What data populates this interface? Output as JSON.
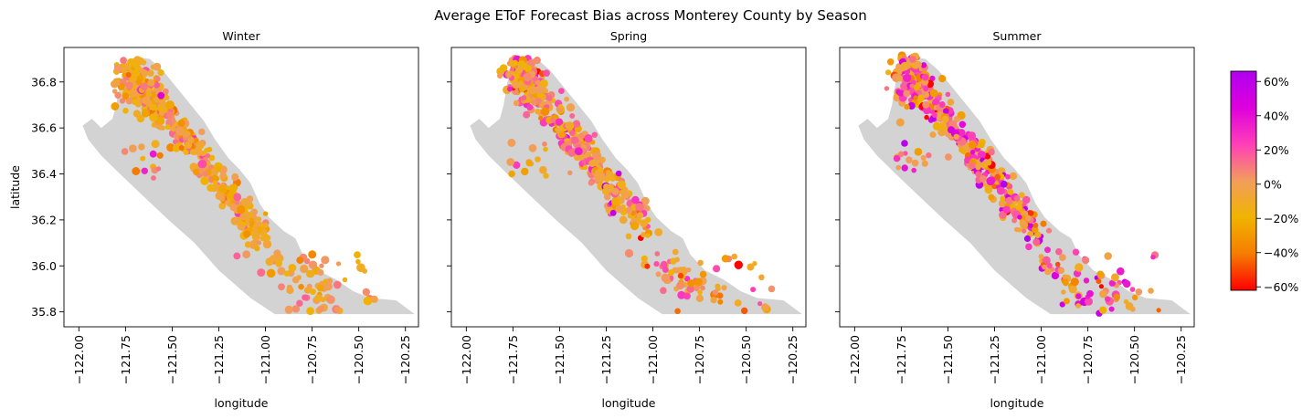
{
  "figure": {
    "suptitle": "Average EToF Forecast Bias across Monterey County by Season"
  },
  "chart_data": {
    "type": "scatter",
    "title": "Average EToF Forecast Bias across Monterey County by Season",
    "xlabel": "longitude",
    "ylabel": "latitude",
    "xlim": [
      -122.08,
      -120.18
    ],
    "ylim": [
      35.735,
      36.95
    ],
    "xticks": [
      -122.0,
      -121.75,
      -121.5,
      -121.25,
      -121.0,
      -120.75,
      -120.5,
      -120.25
    ],
    "xtick_labels": [
      "−122.00",
      "−121.75",
      "−121.50",
      "−121.25",
      "−121.00",
      "−120.75",
      "−120.50",
      "−120.25"
    ],
    "yticks": [
      35.8,
      36.0,
      36.2,
      36.4,
      36.6,
      36.8
    ],
    "ytick_labels": [
      "35.8",
      "36.0",
      "36.2",
      "36.4",
      "36.6",
      "36.8"
    ],
    "grid": false,
    "county_shape": [
      [
        -121.98,
        36.61
      ],
      [
        -121.93,
        36.64
      ],
      [
        -121.88,
        36.6
      ],
      [
        -121.82,
        36.64
      ],
      [
        -121.8,
        36.7
      ],
      [
        -121.78,
        36.8
      ],
      [
        -121.75,
        36.87
      ],
      [
        -121.7,
        36.91
      ],
      [
        -121.62,
        36.9
      ],
      [
        -121.55,
        36.85
      ],
      [
        -121.46,
        36.76
      ],
      [
        -121.4,
        36.7
      ],
      [
        -121.33,
        36.63
      ],
      [
        -121.27,
        36.55
      ],
      [
        -121.2,
        36.47
      ],
      [
        -121.14,
        36.42
      ],
      [
        -121.08,
        36.36
      ],
      [
        -121.03,
        36.27
      ],
      [
        -120.98,
        36.21
      ],
      [
        -120.9,
        36.15
      ],
      [
        -120.84,
        36.12
      ],
      [
        -120.8,
        36.05
      ],
      [
        -120.72,
        35.98
      ],
      [
        -120.62,
        35.94
      ],
      [
        -120.53,
        35.89
      ],
      [
        -120.44,
        35.86
      ],
      [
        -120.3,
        35.85
      ],
      [
        -120.2,
        35.79
      ],
      [
        -120.95,
        35.79
      ],
      [
        -121.08,
        35.86
      ],
      [
        -121.25,
        35.98
      ],
      [
        -121.38,
        36.1
      ],
      [
        -121.52,
        36.2
      ],
      [
        -121.65,
        36.3
      ],
      [
        -121.78,
        36.4
      ],
      [
        -121.88,
        36.48
      ],
      [
        -121.95,
        36.55
      ]
    ],
    "panels": [
      {
        "title": "Winter",
        "seed": 11,
        "bias_shift": -0.08,
        "bias_spread": 0.14
      },
      {
        "title": "Spring",
        "seed": 23,
        "bias_shift": -0.04,
        "bias_spread": 0.2
      },
      {
        "title": "Summer",
        "seed": 37,
        "bias_shift": 0.03,
        "bias_spread": 0.28
      }
    ],
    "colorbar": {
      "min": -0.62,
      "max": 0.66,
      "ticks": [
        -0.6,
        -0.4,
        -0.2,
        0.0,
        0.2,
        0.4,
        0.6
      ],
      "tick_labels": [
        "−60%",
        "−40%",
        "−20%",
        "0%",
        "20%",
        "40%",
        "60%"
      ],
      "colors": [
        "#ff0000",
        "#f57d00",
        "#f0b400",
        "#f29d5c",
        "#ff3fb8",
        "#de00dc",
        "#b000f0"
      ]
    },
    "map_fill_color": "#d3d3d3"
  }
}
